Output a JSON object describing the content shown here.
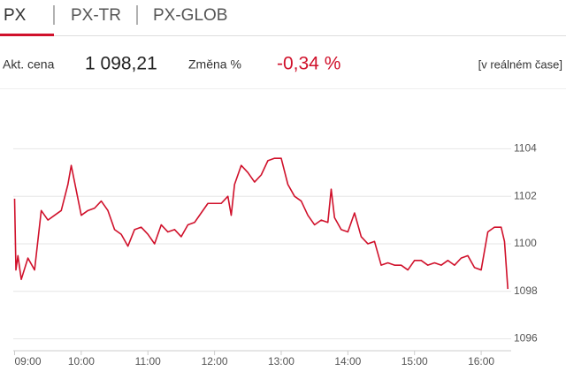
{
  "tabs": [
    "PX",
    "PX-TR",
    "PX-GLOB"
  ],
  "quote": {
    "price_label": "Akt. cena",
    "price": "1 098,21",
    "change_label": "Změna %",
    "change": "-0,34 %",
    "realtime": "[v reálném čase]"
  },
  "chart_data": {
    "type": "line",
    "color": "#d0112b",
    "grid": true,
    "x": [
      9.0,
      9.02,
      9.05,
      9.1,
      9.2,
      9.3,
      9.4,
      9.5,
      9.6,
      9.7,
      9.8,
      9.85,
      9.9,
      10.0,
      10.1,
      10.2,
      10.3,
      10.4,
      10.5,
      10.6,
      10.7,
      10.8,
      10.9,
      11.0,
      11.1,
      11.2,
      11.3,
      11.4,
      11.5,
      11.6,
      11.7,
      11.8,
      11.9,
      12.0,
      12.1,
      12.2,
      12.25,
      12.3,
      12.4,
      12.5,
      12.6,
      12.7,
      12.8,
      12.9,
      13.0,
      13.1,
      13.2,
      13.3,
      13.4,
      13.5,
      13.6,
      13.7,
      13.75,
      13.8,
      13.9,
      14.0,
      14.1,
      14.2,
      14.3,
      14.4,
      14.5,
      14.6,
      14.7,
      14.8,
      14.9,
      15.0,
      15.1,
      15.2,
      15.3,
      15.4,
      15.5,
      15.6,
      15.7,
      15.8,
      15.9,
      16.0,
      16.1,
      16.2,
      16.3,
      16.35,
      16.4
    ],
    "values": [
      1101.9,
      1098.9,
      1099.5,
      1098.5,
      1099.4,
      1098.9,
      1101.4,
      1101.0,
      1101.2,
      1101.4,
      1102.5,
      1103.3,
      1102.6,
      1101.2,
      1101.4,
      1101.5,
      1101.8,
      1101.4,
      1100.6,
      1100.4,
      1099.9,
      1100.6,
      1100.7,
      1100.4,
      1100.0,
      1100.8,
      1100.5,
      1100.6,
      1100.3,
      1100.8,
      1100.9,
      1101.3,
      1101.7,
      1101.7,
      1101.7,
      1102.0,
      1101.2,
      1102.5,
      1103.3,
      1103.0,
      1102.6,
      1102.9,
      1103.5,
      1103.6,
      1103.6,
      1102.5,
      1102.0,
      1101.8,
      1101.2,
      1100.8,
      1101.0,
      1100.9,
      1102.3,
      1101.1,
      1100.6,
      1100.5,
      1101.3,
      1100.3,
      1100.0,
      1100.1,
      1099.1,
      1099.2,
      1099.1,
      1099.1,
      1098.9,
      1099.3,
      1099.3,
      1099.1,
      1099.2,
      1099.1,
      1099.3,
      1099.1,
      1099.4,
      1099.5,
      1099.0,
      1098.9,
      1100.5,
      1100.7,
      1100.7,
      1100.1,
      1098.1
    ],
    "xlim": [
      9,
      16.45
    ],
    "ylim": [
      1095.5,
      1105.8
    ],
    "xticks": [
      {
        "value": 9,
        "label": "09:00"
      },
      {
        "value": 10,
        "label": "10:00"
      },
      {
        "value": 11,
        "label": "11:00"
      },
      {
        "value": 12,
        "label": "12:00"
      },
      {
        "value": 13,
        "label": "13:00"
      },
      {
        "value": 14,
        "label": "14:00"
      },
      {
        "value": 15,
        "label": "15:00"
      },
      {
        "value": 16,
        "label": "16:00"
      }
    ],
    "yticks": [
      1096,
      1098,
      1100,
      1102,
      1104
    ]
  }
}
